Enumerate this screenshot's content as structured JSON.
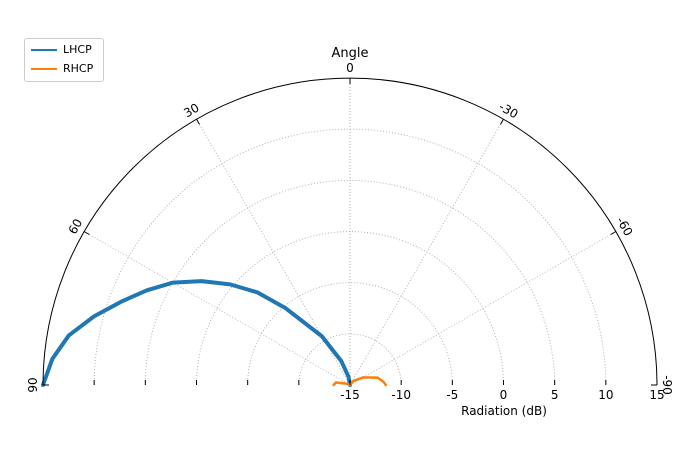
{
  "chart_data": {
    "type": "line",
    "subtype": "polar-half",
    "title": "Angle",
    "xlabel": "Radiation (dB)",
    "angle_ticks": [
      {
        "value": 0,
        "label": "0"
      },
      {
        "value": 30,
        "label": "30"
      },
      {
        "value": 60,
        "label": "60"
      },
      {
        "value": 90,
        "label": "90"
      },
      {
        "value": -30,
        "label": "-30"
      },
      {
        "value": -60,
        "label": "-60"
      },
      {
        "value": -90,
        "label": "-90"
      }
    ],
    "radial_range": [
      -15,
      15
    ],
    "radial_ticks": [
      "-15",
      "-10",
      "-5",
      "0",
      "5",
      "10",
      "15"
    ],
    "grid": true,
    "legend_position": "top-left",
    "series": [
      {
        "name": "LHCP",
        "color": "#1f77b4",
        "points": [
          {
            "angle": 0,
            "r": -15
          },
          {
            "angle": 10,
            "r": -14.2
          },
          {
            "angle": 20,
            "r": -12.5
          },
          {
            "angle": 30,
            "r": -9.5
          },
          {
            "angle": 40,
            "r": -5.2
          },
          {
            "angle": 45,
            "r": -2.2
          },
          {
            "angle": 50,
            "r": 0.3
          },
          {
            "angle": 55,
            "r": 2.7
          },
          {
            "angle": 60,
            "r": 5.0
          },
          {
            "angle": 65,
            "r": 6.9
          },
          {
            "angle": 70,
            "r": 8.8
          },
          {
            "angle": 75,
            "r": 10.9
          },
          {
            "angle": 80,
            "r": 12.9
          },
          {
            "angle": 85,
            "r": 14.2
          },
          {
            "angle": 90,
            "r": 15
          }
        ]
      },
      {
        "name": "RHCP",
        "color": "#ff7f0e",
        "points": [
          {
            "angle": 90,
            "r": -13.4
          },
          {
            "angle": 80,
            "r": -13.6
          },
          {
            "angle": 70,
            "r": -14.6
          },
          {
            "angle": 55,
            "r": -15
          },
          {
            "angle": 40,
            "r": -14.9
          },
          {
            "angle": 0,
            "r": -15
          },
          {
            "angle": -40,
            "r": -14.5
          },
          {
            "angle": -60,
            "r": -13.5
          },
          {
            "angle": -75,
            "r": -12.2
          },
          {
            "angle": -85,
            "r": -11.7
          },
          {
            "angle": -90,
            "r": -11.5
          }
        ]
      }
    ]
  }
}
